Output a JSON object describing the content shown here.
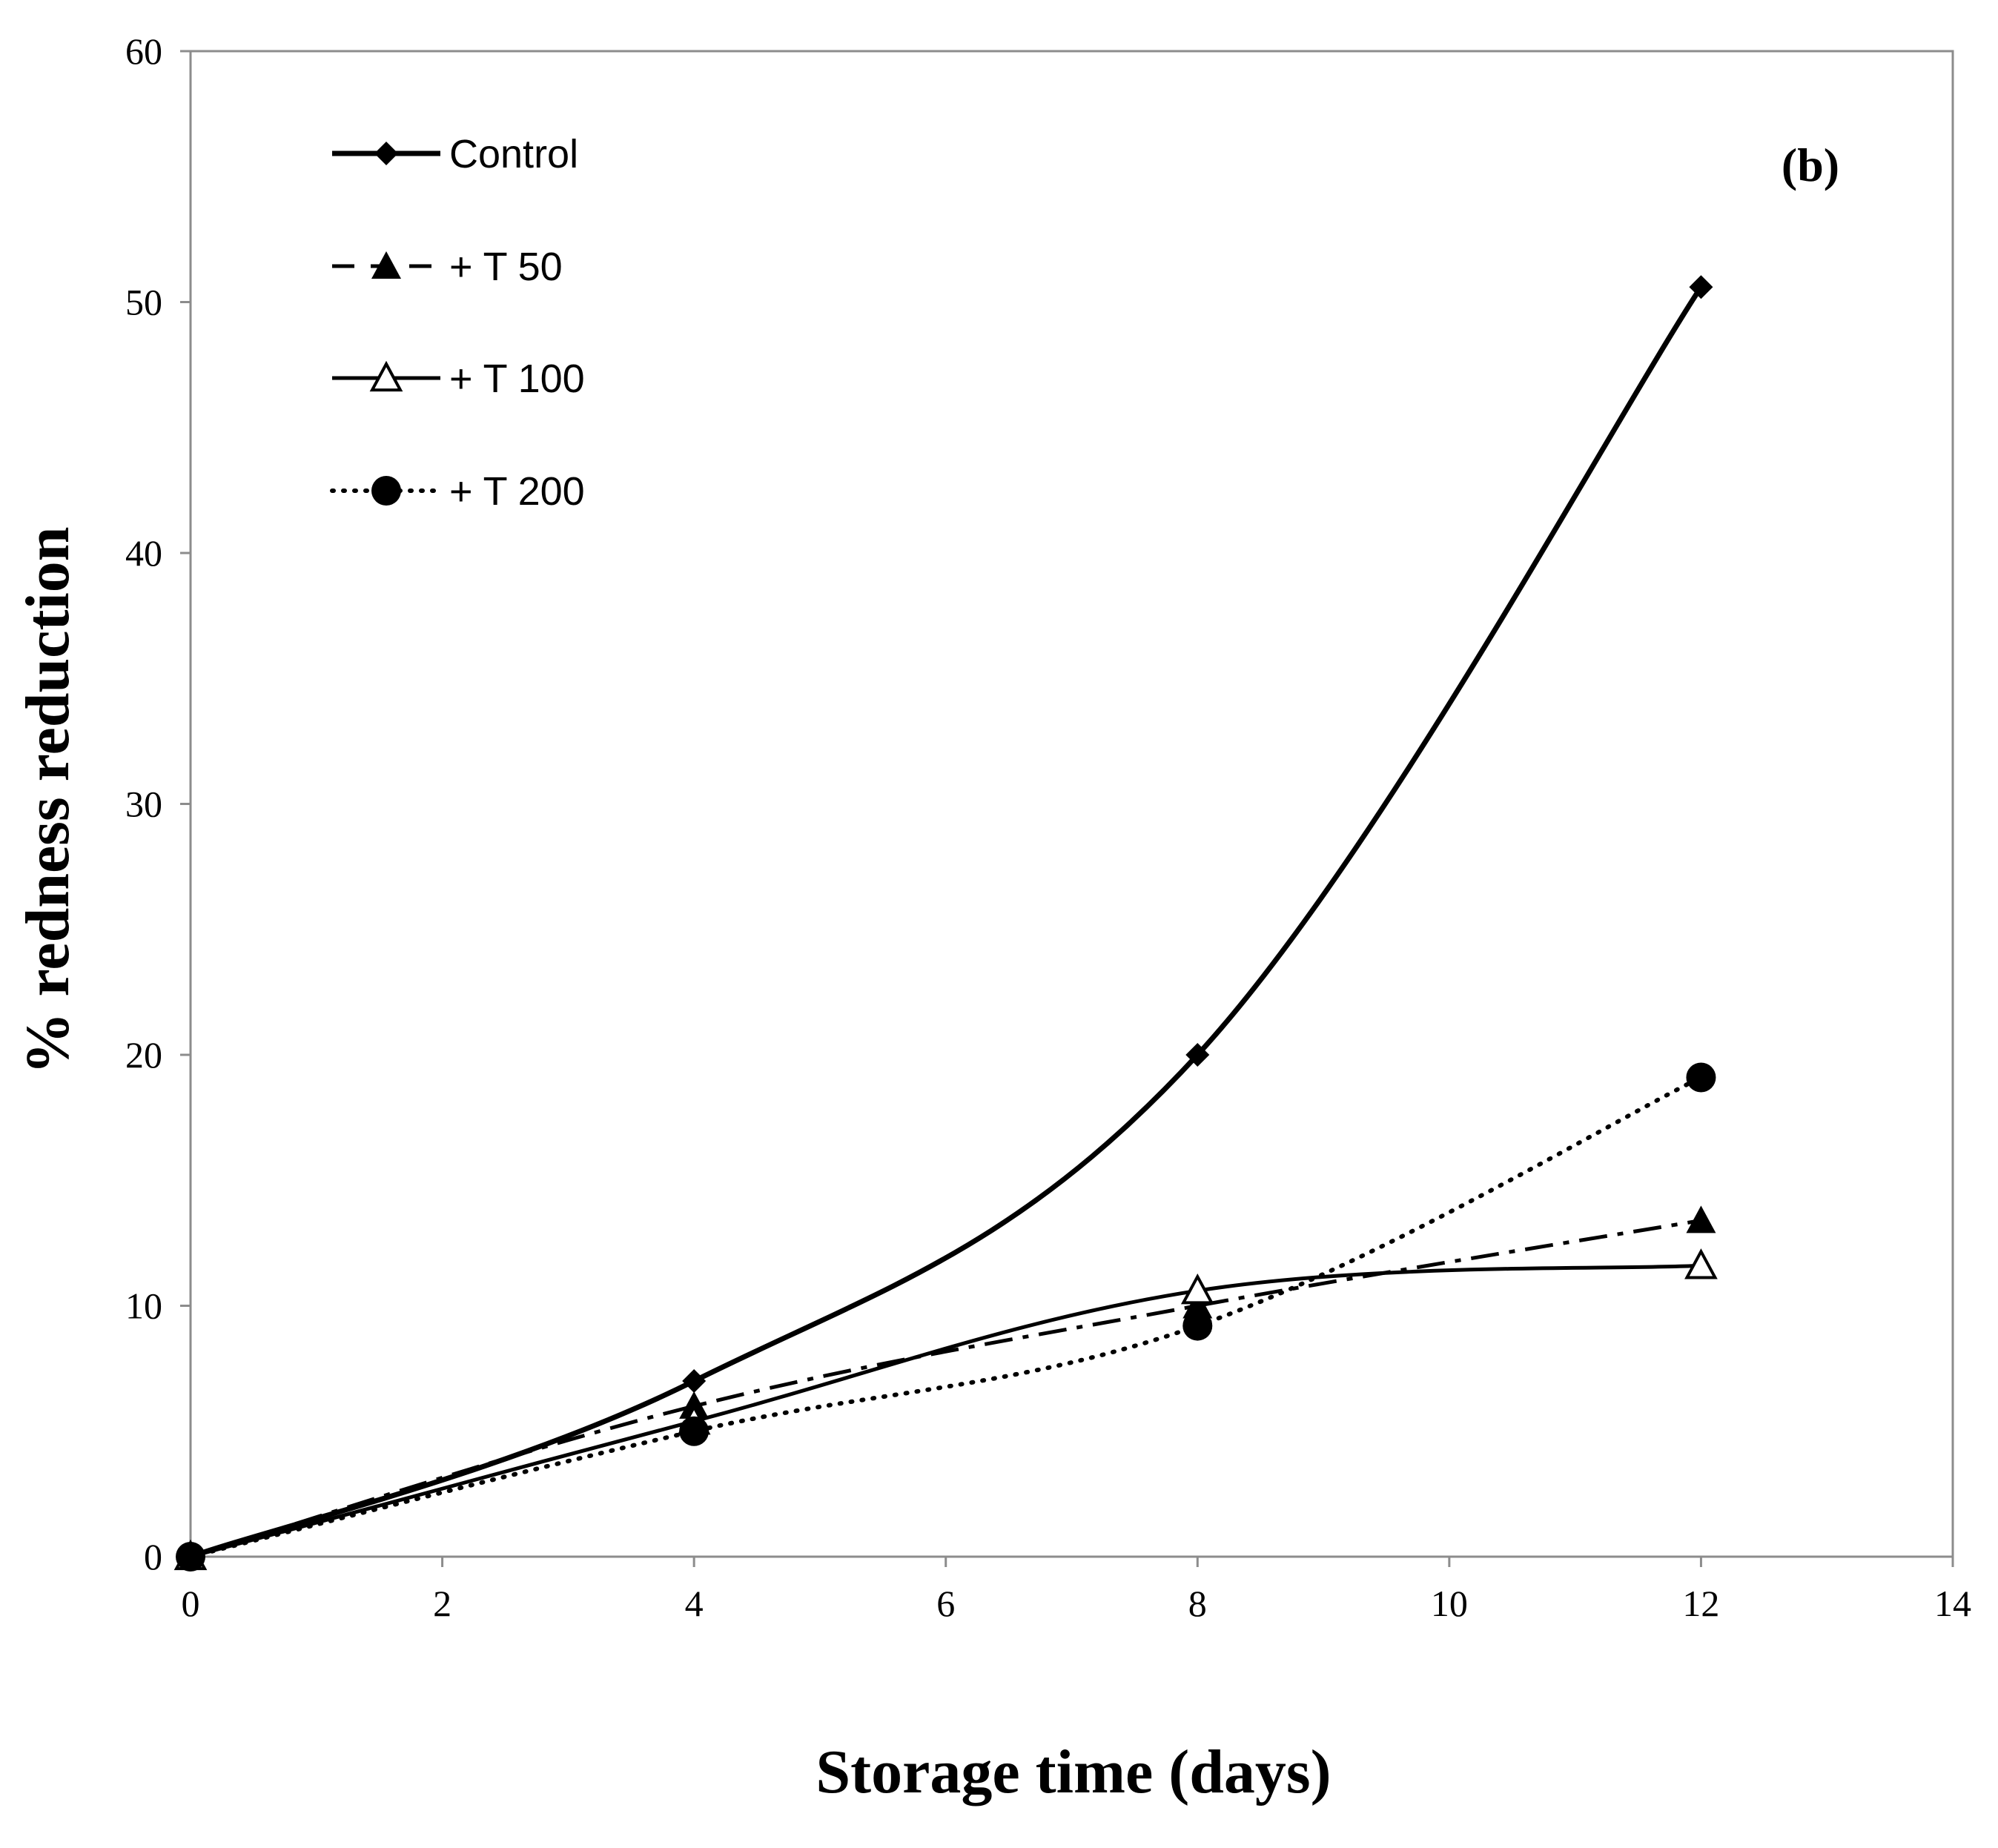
{
  "chart_data": {
    "type": "line",
    "panel_label": "(b)",
    "xlabel": "Storage time (days)",
    "ylabel": "%  redness reduction",
    "xlim": [
      0,
      14
    ],
    "ylim": [
      0,
      60
    ],
    "x_ticks": [
      0,
      2,
      4,
      6,
      8,
      10,
      12,
      14
    ],
    "y_ticks": [
      0,
      10,
      20,
      30,
      40,
      50,
      60
    ],
    "grid": false,
    "legend_position": "top-left",
    "x": [
      0,
      4,
      8,
      12
    ],
    "series": [
      {
        "name": "Control",
        "values": [
          0,
          7.0,
          20.0,
          50.6
        ],
        "marker": "diamond",
        "line": "solid-thick",
        "color": "#000000"
      },
      {
        "name": "+ T 50",
        "values": [
          0,
          6.0,
          10.0,
          13.4
        ],
        "marker": "triangle-filled",
        "line": "dashdot",
        "color": "#000000"
      },
      {
        "name": "+ T 100",
        "values": [
          0,
          5.4,
          10.6,
          11.6
        ],
        "marker": "triangle-open",
        "line": "solid",
        "color": "#000000"
      },
      {
        "name": "+ T 200",
        "values": [
          0,
          5.0,
          9.2,
          19.1
        ],
        "marker": "circle",
        "line": "dotted",
        "color": "#000000"
      }
    ]
  }
}
